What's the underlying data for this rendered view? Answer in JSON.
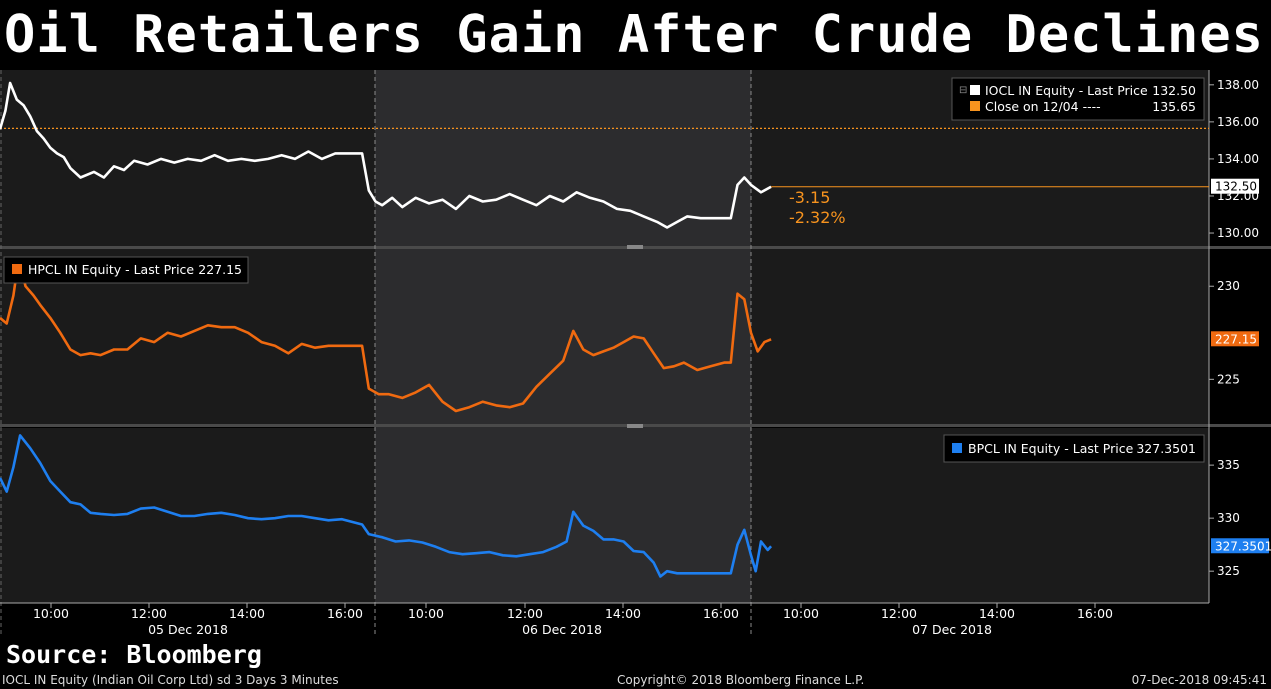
{
  "title": "Oil Retailers Gain After Crude Declines",
  "source": "Source: Bloomberg",
  "footer": {
    "left": "IOCL IN Equity (Indian Oil Corp Ltd) sd 3 Days 3 Minutes",
    "center": "Copyright© 2018 Bloomberg Finance L.P.",
    "right": "07-Dec-2018 09:45:41"
  },
  "colors": {
    "iocl": "#ffffff",
    "hpcl": "#f06a10",
    "bpcl": "#1e7ff0",
    "ref": "#f7931e",
    "panel": "#1b1b1b",
    "shade": "#2c2c2e",
    "grid": "#555555"
  },
  "chart_data": [
    {
      "type": "line",
      "name": "IOCL",
      "legend": [
        {
          "label": "IOCL IN Equity - Last Price",
          "value": "132.50",
          "color": "#ffffff"
        },
        {
          "label": "Close on 12/04 ----",
          "value": "135.65",
          "color": "#f7931e"
        }
      ],
      "ylim": [
        129.3,
        138.8
      ],
      "yticks": [
        "130.00",
        "132.00",
        "134.00",
        "136.00",
        "138.00"
      ],
      "last_label": "132.50",
      "reference_close": 135.65,
      "change_abs": "-3.15",
      "change_pct": "-2.32%",
      "series": [
        {
          "name": "IOCL IN Equity",
          "color": "#ffffff",
          "values": [
            [
              0,
              135.6
            ],
            [
              0.08,
              136.6
            ],
            [
              0.15,
              138.1
            ],
            [
              0.25,
              137.2
            ],
            [
              0.35,
              136.9
            ],
            [
              0.45,
              136.3
            ],
            [
              0.55,
              135.5
            ],
            [
              0.65,
              135.1
            ],
            [
              0.75,
              134.6
            ],
            [
              0.85,
              134.3
            ],
            [
              0.95,
              134.1
            ],
            [
              1.05,
              133.5
            ],
            [
              1.2,
              133.0
            ],
            [
              1.4,
              133.3
            ],
            [
              1.55,
              133.0
            ],
            [
              1.7,
              133.6
            ],
            [
              1.85,
              133.4
            ],
            [
              2.0,
              133.9
            ],
            [
              2.2,
              133.7
            ],
            [
              2.4,
              134.0
            ],
            [
              2.6,
              133.8
            ],
            [
              2.8,
              134.0
            ],
            [
              3.0,
              133.9
            ],
            [
              3.2,
              134.2
            ],
            [
              3.4,
              133.9
            ],
            [
              3.6,
              134.0
            ],
            [
              3.8,
              133.9
            ],
            [
              4.0,
              134.0
            ],
            [
              4.2,
              134.2
            ],
            [
              4.4,
              134.0
            ],
            [
              4.6,
              134.4
            ],
            [
              4.8,
              134.0
            ],
            [
              5.0,
              134.3
            ],
            [
              5.2,
              134.3
            ],
            [
              5.4,
              134.3
            ],
            [
              5.4,
              134.3
            ],
            [
              5.5,
              132.3
            ],
            [
              5.6,
              131.7
            ],
            [
              5.7,
              131.5
            ],
            [
              5.85,
              131.9
            ],
            [
              6.0,
              131.4
            ],
            [
              6.2,
              131.9
            ],
            [
              6.4,
              131.6
            ],
            [
              6.6,
              131.8
            ],
            [
              6.8,
              131.3
            ],
            [
              7.0,
              132.0
            ],
            [
              7.2,
              131.7
            ],
            [
              7.4,
              131.8
            ],
            [
              7.6,
              132.1
            ],
            [
              7.8,
              131.8
            ],
            [
              8.0,
              131.5
            ],
            [
              8.2,
              132.0
            ],
            [
              8.4,
              131.7
            ],
            [
              8.6,
              132.2
            ],
            [
              8.8,
              131.9
            ],
            [
              9.0,
              131.7
            ],
            [
              9.2,
              131.3
            ],
            [
              9.4,
              131.2
            ],
            [
              9.6,
              130.9
            ],
            [
              9.8,
              130.6
            ],
            [
              9.95,
              130.3
            ],
            [
              10.1,
              130.6
            ],
            [
              10.25,
              130.9
            ],
            [
              10.45,
              130.8
            ],
            [
              10.65,
              130.8
            ],
            [
              10.9,
              130.8
            ],
            [
              10.9,
              130.8
            ],
            [
              11.0,
              132.6
            ],
            [
              11.1,
              133.0
            ],
            [
              11.2,
              132.6
            ],
            [
              11.35,
              132.2
            ],
            [
              11.5,
              132.5
            ]
          ]
        }
      ]
    },
    {
      "type": "line",
      "name": "HPCL",
      "legend": [
        {
          "label": "HPCL IN Equity - Last Price",
          "value": "227.15",
          "color": "#f06a10"
        }
      ],
      "ylim": [
        222.6,
        232.0
      ],
      "yticks": [
        "225",
        "230"
      ],
      "last_label": "227.15",
      "series": [
        {
          "name": "HPCL IN Equity",
          "color": "#f06a10",
          "values": [
            [
              0,
              228.3
            ],
            [
              0.1,
              228.0
            ],
            [
              0.2,
              229.5
            ],
            [
              0.28,
              231.5
            ],
            [
              0.38,
              230.0
            ],
            [
              0.5,
              229.5
            ],
            [
              0.6,
              229.0
            ],
            [
              0.75,
              228.3
            ],
            [
              0.9,
              227.5
            ],
            [
              1.05,
              226.6
            ],
            [
              1.2,
              226.3
            ],
            [
              1.35,
              226.4
            ],
            [
              1.5,
              226.3
            ],
            [
              1.7,
              226.6
            ],
            [
              1.9,
              226.6
            ],
            [
              2.1,
              227.2
            ],
            [
              2.3,
              227.0
            ],
            [
              2.5,
              227.5
            ],
            [
              2.7,
              227.3
            ],
            [
              2.9,
              227.6
            ],
            [
              3.1,
              227.9
            ],
            [
              3.3,
              227.8
            ],
            [
              3.5,
              227.8
            ],
            [
              3.7,
              227.5
            ],
            [
              3.9,
              227.0
            ],
            [
              4.1,
              226.8
            ],
            [
              4.3,
              226.4
            ],
            [
              4.5,
              226.9
            ],
            [
              4.7,
              226.7
            ],
            [
              4.9,
              226.8
            ],
            [
              5.1,
              226.8
            ],
            [
              5.4,
              226.8
            ],
            [
              5.4,
              226.8
            ],
            [
              5.5,
              224.5
            ],
            [
              5.65,
              224.2
            ],
            [
              5.8,
              224.2
            ],
            [
              6.0,
              224.0
            ],
            [
              6.2,
              224.3
            ],
            [
              6.4,
              224.7
            ],
            [
              6.6,
              223.8
            ],
            [
              6.8,
              223.3
            ],
            [
              7.0,
              223.5
            ],
            [
              7.2,
              223.8
            ],
            [
              7.4,
              223.6
            ],
            [
              7.6,
              223.5
            ],
            [
              7.8,
              223.7
            ],
            [
              8.0,
              224.6
            ],
            [
              8.2,
              225.3
            ],
            [
              8.4,
              226.0
            ],
            [
              8.55,
              227.6
            ],
            [
              8.7,
              226.6
            ],
            [
              8.85,
              226.3
            ],
            [
              9.0,
              226.5
            ],
            [
              9.15,
              226.7
            ],
            [
              9.3,
              227.0
            ],
            [
              9.45,
              227.3
            ],
            [
              9.6,
              227.2
            ],
            [
              9.75,
              226.4
            ],
            [
              9.9,
              225.6
            ],
            [
              10.05,
              225.7
            ],
            [
              10.2,
              225.9
            ],
            [
              10.4,
              225.5
            ],
            [
              10.6,
              225.7
            ],
            [
              10.8,
              225.9
            ],
            [
              10.9,
              225.9
            ],
            [
              10.9,
              225.9
            ],
            [
              11.0,
              229.6
            ],
            [
              11.1,
              229.3
            ],
            [
              11.2,
              227.5
            ],
            [
              11.3,
              226.5
            ],
            [
              11.4,
              227.0
            ],
            [
              11.5,
              227.15
            ]
          ]
        }
      ]
    },
    {
      "type": "line",
      "name": "BPCL",
      "legend": [
        {
          "label": "BPCL IN Equity - Last Price",
          "value": "327.3501",
          "color": "#1e7ff0"
        }
      ],
      "ylim": [
        322.0,
        338.5
      ],
      "yticks": [
        "325",
        "330",
        "335"
      ],
      "last_label": "327.3501",
      "series": [
        {
          "name": "BPCL IN Equity",
          "color": "#1e7ff0",
          "values": [
            [
              0,
              333.8
            ],
            [
              0.1,
              332.5
            ],
            [
              0.2,
              334.8
            ],
            [
              0.3,
              337.8
            ],
            [
              0.45,
              336.6
            ],
            [
              0.6,
              335.2
            ],
            [
              0.75,
              333.5
            ],
            [
              0.9,
              332.5
            ],
            [
              1.05,
              331.5
            ],
            [
              1.2,
              331.3
            ],
            [
              1.35,
              330.5
            ],
            [
              1.5,
              330.4
            ],
            [
              1.7,
              330.3
            ],
            [
              1.9,
              330.4
            ],
            [
              2.1,
              330.9
            ],
            [
              2.3,
              331.0
            ],
            [
              2.5,
              330.6
            ],
            [
              2.7,
              330.2
            ],
            [
              2.9,
              330.2
            ],
            [
              3.1,
              330.4
            ],
            [
              3.3,
              330.5
            ],
            [
              3.5,
              330.3
            ],
            [
              3.7,
              330.0
            ],
            [
              3.9,
              329.9
            ],
            [
              4.1,
              330.0
            ],
            [
              4.3,
              330.2
            ],
            [
              4.5,
              330.2
            ],
            [
              4.7,
              330.0
            ],
            [
              4.9,
              329.8
            ],
            [
              5.1,
              329.9
            ],
            [
              5.4,
              329.4
            ],
            [
              5.4,
              329.4
            ],
            [
              5.5,
              328.5
            ],
            [
              5.7,
              328.2
            ],
            [
              5.9,
              327.8
            ],
            [
              6.1,
              327.9
            ],
            [
              6.3,
              327.7
            ],
            [
              6.5,
              327.3
            ],
            [
              6.7,
              326.8
            ],
            [
              6.9,
              326.6
            ],
            [
              7.1,
              326.7
            ],
            [
              7.3,
              326.8
            ],
            [
              7.5,
              326.5
            ],
            [
              7.7,
              326.4
            ],
            [
              7.9,
              326.6
            ],
            [
              8.1,
              326.8
            ],
            [
              8.3,
              327.3
            ],
            [
              8.45,
              327.8
            ],
            [
              8.55,
              330.6
            ],
            [
              8.7,
              329.3
            ],
            [
              8.85,
              328.8
            ],
            [
              9.0,
              328.0
            ],
            [
              9.15,
              328.0
            ],
            [
              9.3,
              327.8
            ],
            [
              9.45,
              326.9
            ],
            [
              9.6,
              326.8
            ],
            [
              9.75,
              325.8
            ],
            [
              9.85,
              324.5
            ],
            [
              9.95,
              325.0
            ],
            [
              10.1,
              324.8
            ],
            [
              10.3,
              324.8
            ],
            [
              10.5,
              324.8
            ],
            [
              10.7,
              324.8
            ],
            [
              10.9,
              324.8
            ],
            [
              10.9,
              324.8
            ],
            [
              11.0,
              327.5
            ],
            [
              11.1,
              328.9
            ],
            [
              11.2,
              326.5
            ],
            [
              11.27,
              325.0
            ],
            [
              11.35,
              327.8
            ],
            [
              11.45,
              327.0
            ],
            [
              11.5,
              327.35
            ]
          ]
        }
      ]
    }
  ],
  "x_axis": {
    "time_ticks": [
      "10:00",
      "12:00",
      "14:00",
      "16:00",
      "10:00",
      "12:00",
      "14:00",
      "16:00",
      "10:00",
      "12:00",
      "14:00",
      "16:00"
    ],
    "date_labels": [
      "05 Dec 2018",
      "06 Dec 2018",
      "07 Dec 2018"
    ]
  }
}
